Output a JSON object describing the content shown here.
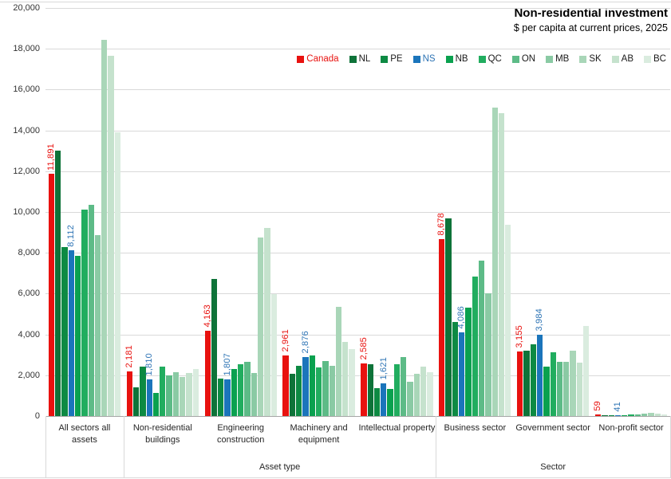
{
  "title": "Non-residential investment",
  "subtitle": "$ per capita at current prices, 2025",
  "axis": {
    "y_ticks": [
      "0",
      "2,000",
      "4,000",
      "6,000",
      "8,000",
      "10,000",
      "12,000",
      "14,000",
      "16,000",
      "18,000",
      "20,000"
    ],
    "span_labels": [
      {
        "label": "Asset type",
        "start_category": 1,
        "end_category": 4
      },
      {
        "label": "Sector",
        "start_category": 5,
        "end_category": 7
      }
    ]
  },
  "chart_data": {
    "type": "bar",
    "title": "Non-residential investment",
    "subtitle": "$ per capita at current prices, 2025",
    "ylim": [
      0,
      20000
    ],
    "grid": true,
    "legend_position": "top-right",
    "categories": [
      "All sectors all assets",
      "Non-residential buildings",
      "Engineering construction",
      "Machinery and equipment",
      "Intellectual property",
      "Business sector",
      "Government sector",
      "Non-profit sector"
    ],
    "series": [
      {
        "name": "Canada",
        "color": "#e8120f",
        "label_color": "#e8120f",
        "values": [
          11891,
          2181,
          4163,
          2961,
          2585,
          8678,
          3155,
          59
        ],
        "labels": [
          "11,891",
          "2,181",
          "4,163",
          "2,961",
          "2,585",
          "8,678",
          "3,155",
          "59"
        ]
      },
      {
        "name": "NL",
        "color": "#0e7339",
        "values": [
          13000,
          1400,
          6700,
          2070,
          2550,
          9690,
          3200,
          40
        ]
      },
      {
        "name": "PE",
        "color": "#0d8a43",
        "values": [
          8300,
          2430,
          1840,
          2460,
          1360,
          4610,
          3530,
          50
        ]
      },
      {
        "name": "NS",
        "color": "#1b75bb",
        "label_color": "#2e74b5",
        "values": [
          8112,
          1810,
          1807,
          2876,
          1621,
          4086,
          3984,
          41
        ],
        "labels": [
          "8,112",
          "1,810",
          "1,807",
          "2,876",
          "1,621",
          "4,086",
          "3,984",
          "41"
        ]
      },
      {
        "name": "NB",
        "color": "#0aa14f",
        "values": [
          7850,
          1150,
          2300,
          2950,
          1320,
          5310,
          2420,
          55
        ]
      },
      {
        "name": "QC",
        "color": "#21ad5f",
        "values": [
          10100,
          2430,
          2550,
          2400,
          2550,
          6840,
          3110,
          70
        ]
      },
      {
        "name": "ON",
        "color": "#5dbb87",
        "values": [
          10350,
          2000,
          2660,
          2680,
          2880,
          7600,
          2650,
          65
        ]
      },
      {
        "name": "MB",
        "color": "#8acaa4",
        "values": [
          8850,
          2160,
          2100,
          2480,
          1680,
          6000,
          2650,
          120
        ]
      },
      {
        "name": "SK",
        "color": "#a9d6b8",
        "values": [
          18450,
          1930,
          8750,
          5350,
          2070,
          15120,
          3200,
          160
        ]
      },
      {
        "name": "AB",
        "color": "#c5e2cd",
        "values": [
          17650,
          2100,
          9200,
          3620,
          2420,
          14860,
          2630,
          130
        ]
      },
      {
        "name": "BC",
        "color": "#daecdf",
        "values": [
          13900,
          2290,
          5970,
          3270,
          2150,
          9390,
          4400,
          70
        ]
      }
    ]
  }
}
